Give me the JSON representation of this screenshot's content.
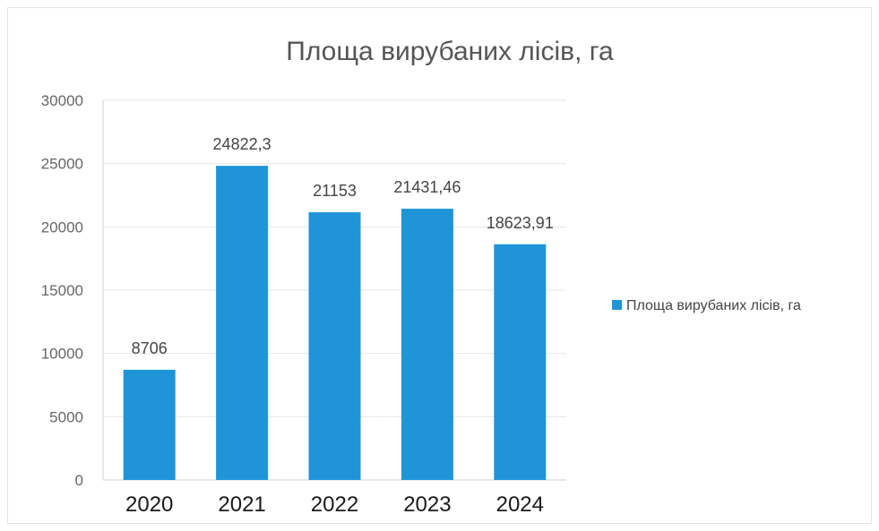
{
  "chart_data": {
    "type": "bar",
    "title": "Площа вирубаних лісів, га",
    "categories": [
      "2020",
      "2021",
      "2022",
      "2023",
      "2024"
    ],
    "series": [
      {
        "name": "Площа вирубаних лісів, га",
        "values": [
          8706,
          24822.3,
          21153,
          21431.46,
          18623.91
        ],
        "labels": [
          "8706",
          "24822,3",
          "21153",
          "21431,46",
          "18623,91"
        ],
        "color": "#1f95d8"
      }
    ],
    "yticks": [
      "0",
      "5000",
      "10000",
      "15000",
      "20000",
      "25000",
      "30000"
    ],
    "ylim": [
      0,
      30000
    ],
    "grid": true,
    "legend_position": "right"
  }
}
